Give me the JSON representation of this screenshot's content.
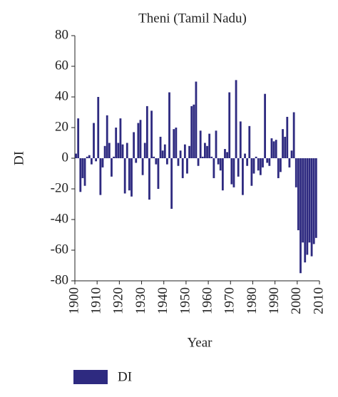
{
  "chart_data": {
    "type": "bar",
    "title": "Theni (Tamil Nadu)",
    "x_label": "Year",
    "y_label": "DI",
    "x": [
      1901,
      1902,
      1903,
      1904,
      1905,
      1906,
      1907,
      1908,
      1909,
      1910,
      1911,
      1912,
      1913,
      1914,
      1915,
      1916,
      1917,
      1918,
      1919,
      1920,
      1921,
      1922,
      1923,
      1924,
      1925,
      1926,
      1927,
      1928,
      1929,
      1930,
      1931,
      1932,
      1933,
      1934,
      1935,
      1936,
      1937,
      1938,
      1939,
      1940,
      1941,
      1942,
      1943,
      1944,
      1945,
      1946,
      1947,
      1948,
      1949,
      1950,
      1951,
      1952,
      1953,
      1954,
      1955,
      1956,
      1957,
      1958,
      1959,
      1960,
      1961,
      1962,
      1963,
      1964,
      1965,
      1966,
      1967,
      1968,
      1969,
      1970,
      1971,
      1972,
      1973,
      1974,
      1975,
      1976,
      1977,
      1978,
      1979,
      1980,
      1981,
      1982,
      1983,
      1984,
      1985,
      1986,
      1987,
      1988,
      1989,
      1990,
      1991,
      1992,
      1993,
      1994,
      1995,
      1996,
      1997,
      1998,
      1999,
      2000,
      2001,
      2002,
      2003,
      2004,
      2005,
      2006,
      2007,
      2008,
      2009
    ],
    "series": [
      {
        "name": "DI",
        "color": "#2e2a80",
        "values": [
          3,
          26,
          -22,
          -13,
          -18,
          1,
          2,
          -4,
          23,
          -2,
          40,
          -24,
          -6,
          8,
          28,
          10,
          -12,
          1,
          20,
          10,
          26,
          9,
          -23,
          10,
          -21,
          -25,
          17,
          -3,
          23,
          25,
          -11,
          10,
          34,
          -27,
          31,
          1,
          -4,
          -20,
          14,
          5,
          9,
          -4,
          43,
          -33,
          19,
          20,
          -5,
          5,
          -13,
          9,
          -10,
          8,
          34,
          35,
          50,
          -5,
          18,
          1,
          10,
          8,
          16,
          1,
          -13,
          18,
          -4,
          -8,
          -21,
          6,
          4,
          43,
          -17,
          -19,
          51,
          -12,
          24,
          -24,
          3,
          -5,
          21,
          -18,
          -10,
          1,
          -8,
          -11,
          -6,
          42,
          -3,
          -5,
          13,
          11,
          12,
          -13,
          -9,
          19,
          14,
          27,
          -6,
          5,
          30,
          -19,
          -47,
          -75,
          -55,
          -68,
          -63,
          -55,
          -64,
          -56,
          -52
        ]
      }
    ],
    "xlim": [
      1900,
      2010
    ],
    "xticks": [
      1900,
      1910,
      1920,
      1930,
      1940,
      1950,
      1960,
      1970,
      1980,
      1990,
      2000,
      2010
    ],
    "ylim": [
      -80,
      80
    ],
    "yticks": [
      -80,
      -60,
      -40,
      -20,
      0,
      20,
      40,
      60,
      80
    ],
    "legend": "bottom-left"
  }
}
